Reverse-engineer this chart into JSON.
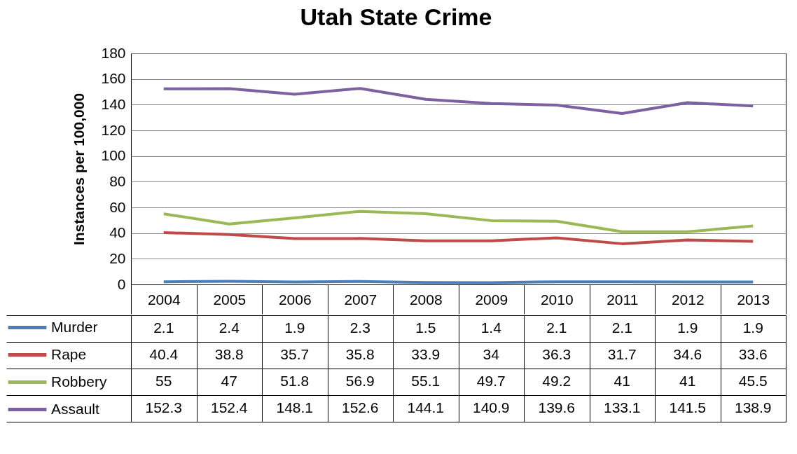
{
  "chart_data": {
    "type": "line",
    "title": "Utah State Crime",
    "ylabel": "Instances per 100,000",
    "categories": [
      "2004",
      "2005",
      "2006",
      "2007",
      "2008",
      "2009",
      "2010",
      "2011",
      "2012",
      "2013"
    ],
    "series": [
      {
        "name": "Murder",
        "color": "#4a7ebb",
        "values": [
          2.1,
          2.4,
          1.9,
          2.3,
          1.5,
          1.4,
          2.1,
          2.1,
          1.9,
          1.9
        ]
      },
      {
        "name": "Rape",
        "color": "#be4b48",
        "values": [
          40.4,
          38.8,
          35.7,
          35.8,
          33.9,
          34,
          36.3,
          31.7,
          34.6,
          33.6
        ]
      },
      {
        "name": "Robbery",
        "color": "#98b954",
        "values": [
          55,
          47,
          51.8,
          56.9,
          55.1,
          49.7,
          49.2,
          41,
          41,
          45.5
        ]
      },
      {
        "name": "Assault",
        "color": "#7d60a0",
        "values": [
          152.3,
          152.4,
          148.1,
          152.6,
          144.1,
          140.9,
          139.6,
          133.1,
          141.5,
          138.9
        ]
      }
    ],
    "ylim": [
      0,
      180
    ],
    "yticks": [
      0,
      20,
      40,
      60,
      80,
      100,
      120,
      140,
      160,
      180
    ],
    "grid": "y",
    "legend": "bottom left",
    "data_labels": true,
    "marker": "none",
    "line_style": "solid"
  }
}
